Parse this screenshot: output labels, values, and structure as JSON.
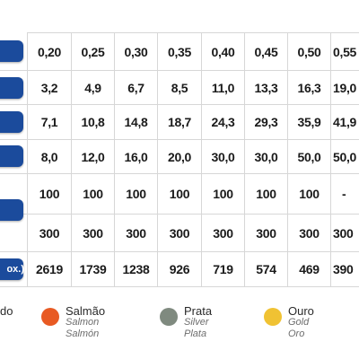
{
  "table": {
    "last_row_header": "ox.)",
    "rows": [
      [
        "0,20",
        "0,25",
        "0,30",
        "0,35",
        "0,40",
        "0,45",
        "0,50",
        "0,55"
      ],
      [
        "3,2",
        "4,9",
        "6,7",
        "8,5",
        "11,0",
        "13,3",
        "16,3",
        "19,0"
      ],
      [
        "7,1",
        "10,8",
        "14,8",
        "18,7",
        "24,3",
        "29,3",
        "35,9",
        "41,9"
      ],
      [
        "8,0",
        "12,0",
        "16,0",
        "20,0",
        "30,0",
        "30,0",
        "50,0",
        "50,0"
      ],
      [
        "100",
        "100",
        "100",
        "100",
        "100",
        "100",
        "100",
        "-"
      ],
      [
        "300",
        "300",
        "300",
        "300",
        "300",
        "300",
        "300",
        "300"
      ],
      [
        "2619",
        "1739",
        "1238",
        "926",
        "719",
        "574",
        "469",
        "390"
      ]
    ]
  },
  "legend": [
    {
      "main": "do",
      "sub1": "",
      "sub2": "",
      "color": "#ffffff"
    },
    {
      "main": "Salmão",
      "sub1": "Salmon",
      "sub2": "Salmón",
      "color": "#e85a23"
    },
    {
      "main": "Prata",
      "sub1": "Silver",
      "sub2": "Plata",
      "color": "#7f8a7f"
    },
    {
      "main": "Ouro",
      "sub1": "Gold",
      "sub2": "Oro",
      "color": "#f0c233"
    }
  ]
}
